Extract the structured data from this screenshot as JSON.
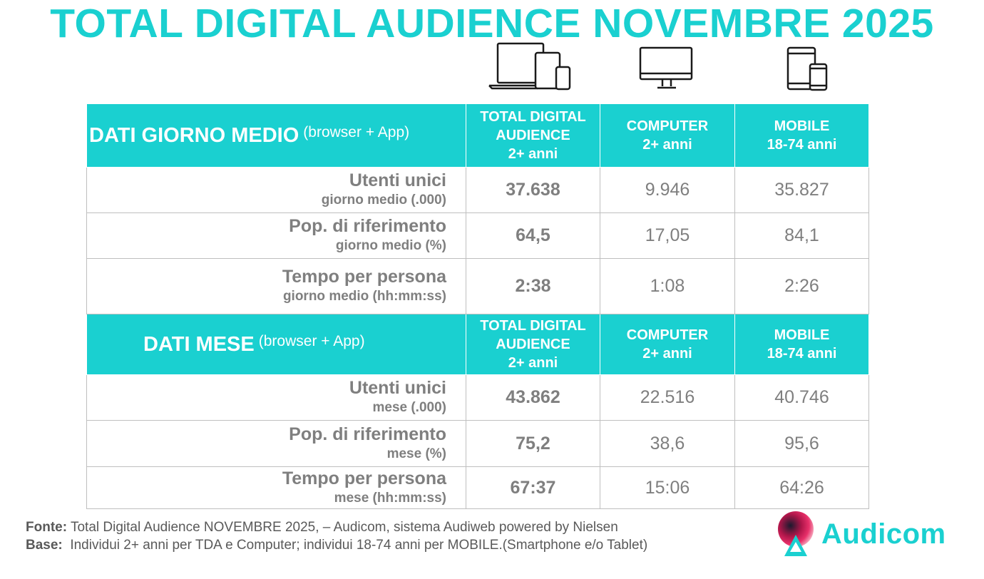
{
  "title": "TOTAL DIGITAL AUDIENCE NOVEMBRE 2025",
  "icons": {
    "total": "all-devices-icon",
    "computer": "desktop-monitor-icon",
    "mobile": "tablet-smartphone-icon",
    "logo": "audicom-logo-icon"
  },
  "colors": {
    "accent": "#1ad0d0",
    "text": "#7f7f7f",
    "footer": "#595959"
  },
  "columns": {
    "total": [
      "TOTAL DIGITAL",
      "AUDIENCE",
      "2+ anni"
    ],
    "computer": [
      "COMPUTER",
      "2+ anni"
    ],
    "mobile": [
      "MOBILE",
      "18-74 anni"
    ]
  },
  "section_day": {
    "title": "DATI GIORNO MEDIO",
    "subtitle": "(browser + App)",
    "rows": [
      {
        "label": "Utenti unici",
        "sublabel": "giorno medio (.000)",
        "total": "37.638",
        "computer": "9.946",
        "mobile": "35.827"
      },
      {
        "label": "Pop. di riferimento",
        "sublabel": "giorno medio (%)",
        "total": "64,5",
        "computer": "17,05",
        "mobile": "84,1"
      },
      {
        "label": "Tempo per persona",
        "sublabel": "giorno medio (hh:mm:ss)",
        "total": "2:38",
        "computer": "1:08",
        "mobile": "2:26"
      }
    ]
  },
  "section_month": {
    "title": "DATI MESE",
    "subtitle": "(browser + App)",
    "rows": [
      {
        "label": "Utenti unici",
        "sublabel": "mese (.000)",
        "total": "43.862",
        "computer": "22.516",
        "mobile": "40.746"
      },
      {
        "label": "Pop. di riferimento",
        "sublabel": "mese (%)",
        "total": "75,2",
        "computer": "38,6",
        "mobile": "95,6"
      },
      {
        "label": "Tempo per persona",
        "sublabel": "mese (hh:mm:ss)",
        "total": "67:37",
        "computer": "15:06",
        "mobile": "64:26"
      }
    ]
  },
  "footer": {
    "source_label": "Fonte:",
    "source_text": "Total Digital Audience NOVEMBRE 2025, – Audicom, sistema Audiweb powered by Nielsen",
    "base_label": "Base:",
    "base_text": "Individui 2+ anni per TDA e Computer; individui 18-74 anni per MOBILE.(Smartphone e/o Tablet)"
  },
  "brand": {
    "name": "Audicom"
  }
}
